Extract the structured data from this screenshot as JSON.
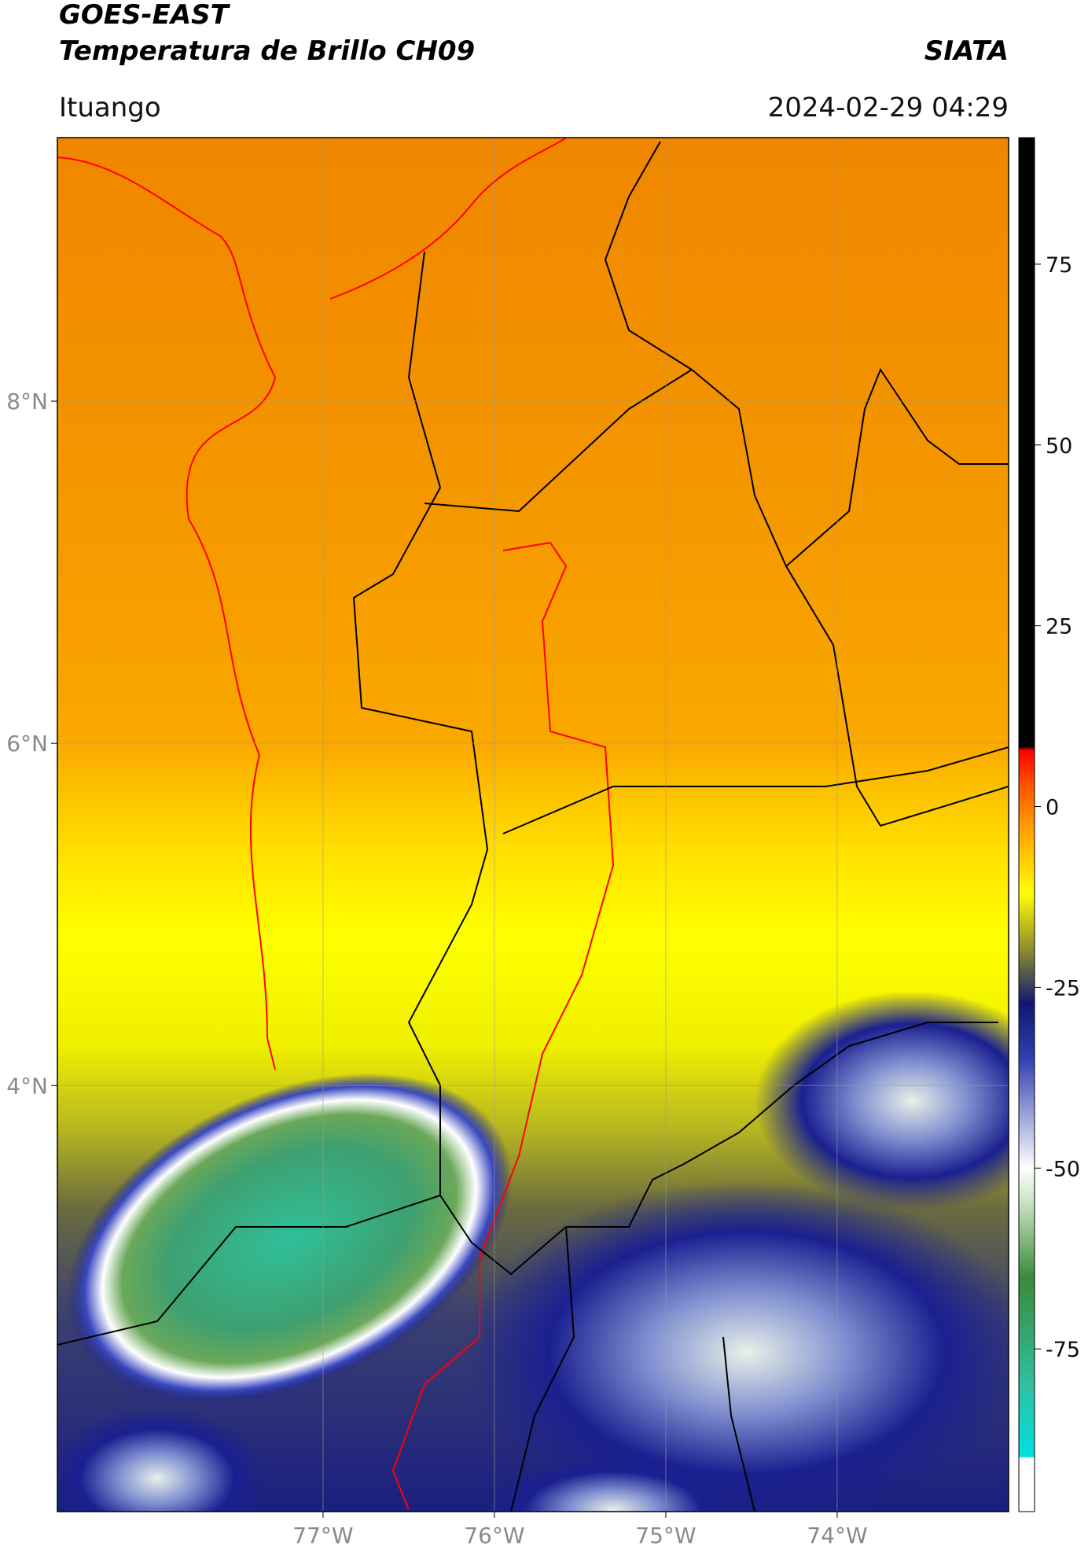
{
  "header": {
    "title": "GOES-EAST",
    "subtitle": "Temperatura de Brillo CH09",
    "source": "SIATA",
    "location": "Ituango",
    "datetime": "2024-02-29 04:29"
  },
  "map": {
    "xlim": [
      -78.55,
      -73.0
    ],
    "ylim": [
      1.51,
      9.54
    ],
    "xticks": [
      {
        "value": -77,
        "label": "77°W"
      },
      {
        "value": -76,
        "label": "76°W"
      },
      {
        "value": -75,
        "label": "75°W"
      },
      {
        "value": -74,
        "label": "74°W"
      }
    ],
    "yticks": [
      {
        "value": 8,
        "label": "8°N"
      },
      {
        "value": 6,
        "label": "6°N"
      },
      {
        "value": 4,
        "label": "4°N"
      }
    ],
    "grid": true
  },
  "colorbar": {
    "lim": [
      -97.5,
      92.5
    ],
    "ticks": [
      75,
      50,
      25,
      0,
      -25,
      -50,
      -75
    ]
  }
}
